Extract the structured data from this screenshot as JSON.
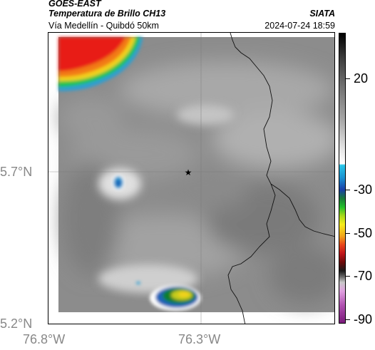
{
  "header": {
    "satellite": "GOES-EAST",
    "product": "Temperatura de Brillo CH13",
    "route": "Vía Medellín - Quibdó 50km",
    "agency": "SIATA",
    "datetime": "2024-07-24 18:59"
  },
  "axes": {
    "lat_ticks": [
      "5.7°N",
      "5.2°N"
    ],
    "lon_ticks": [
      "76.8°W",
      "76.3°W"
    ]
  },
  "colorbar": {
    "labels": [
      "20",
      "-30",
      "-50",
      "-70",
      "-90"
    ]
  },
  "marker": {
    "symbol": "★",
    "name": "route-reference-point"
  }
}
